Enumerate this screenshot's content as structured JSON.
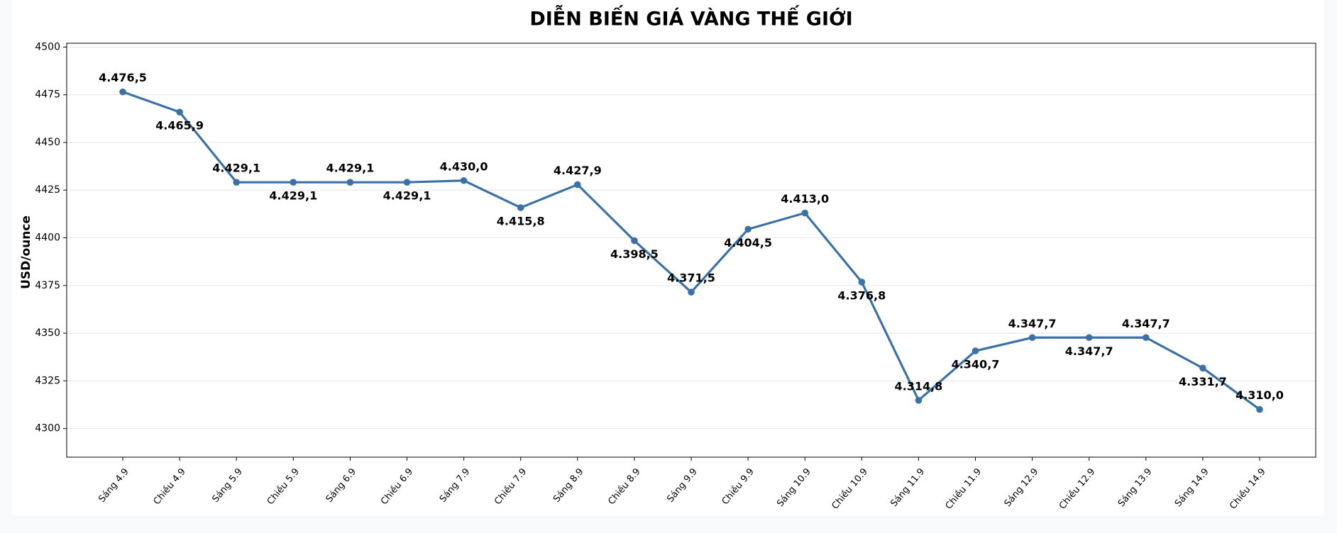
{
  "chart_data": {
    "type": "line",
    "title": "DIỄN BIẾN GIÁ VÀNG THẾ GIỚI",
    "ylabel": "USD/ounce",
    "categories": [
      "Sáng 4.9",
      "Chiều 4.9",
      "Sáng 5.9",
      "Chiều 5.9",
      "Sáng 6.9",
      "Chiều 6.9",
      "Sáng 7.9",
      "Chiều 7.9",
      "Sáng 8.9",
      "Chiều 8.9",
      "Sáng 9.9",
      "Chiều 9.9",
      "Sáng 10.9",
      "Chiều 10.9",
      "Sáng 11.9",
      "Chiều 11.9",
      "Sáng 12.9",
      "Chiều 12.9",
      "Sáng 13.9",
      "Sáng 14.9",
      "Chiều 14.9"
    ],
    "values": [
      4476.5,
      4465.9,
      4429.1,
      4429.1,
      4429.1,
      4429.1,
      4430.0,
      4415.8,
      4427.9,
      4398.5,
      4371.5,
      4404.5,
      4413.0,
      4376.8,
      4314.8,
      4340.7,
      4347.7,
      4347.7,
      4347.7,
      4331.7,
      4310.0
    ],
    "value_labels": [
      "4.476,5",
      "4.465,9",
      "4.429,1",
      "4.429,1",
      "4.429,1",
      "4.429,1",
      "4.430,0",
      "4.415,8",
      "4.427,9",
      "4.398,5",
      "4.371,5",
      "4.404,5",
      "4.413,0",
      "4.376,8",
      "4.314,8",
      "4.340,7",
      "4.347,7",
      "4.347,7",
      "4.347,7",
      "4.331,7",
      "4.310,0"
    ],
    "color": "#3a72a8",
    "ylim": [
      4285,
      4502
    ],
    "yticks": [
      4300,
      4325,
      4350,
      4375,
      4400,
      4425,
      4450,
      4475,
      4500
    ],
    "grid": true
  }
}
